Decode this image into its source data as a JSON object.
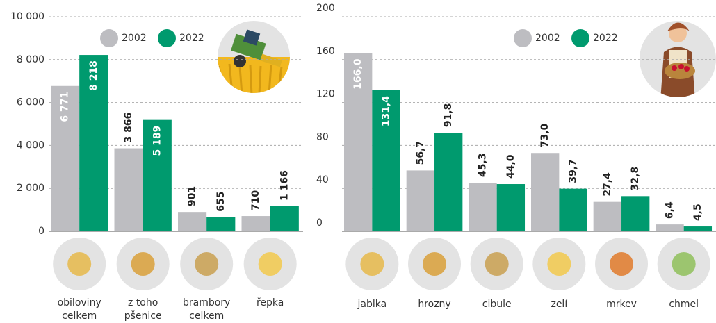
{
  "chart_data": [
    {
      "type": "bar",
      "categories": [
        [
          "obiloviny",
          "celkem"
        ],
        [
          "z toho",
          "pšenice"
        ],
        [
          "brambory",
          "celkem"
        ],
        [
          "řepka"
        ]
      ],
      "series": [
        {
          "name": "2002",
          "color": "#bdbdc1",
          "values": [
            6771,
            3866,
            901,
            710
          ],
          "value_labels": [
            "6 771",
            "3 866",
            "901",
            "710"
          ]
        },
        {
          "name": "2022",
          "color": "#009a6e",
          "values": [
            8218,
            5189,
            655,
            1166
          ],
          "value_labels": [
            "8 218",
            "5 189",
            "655",
            "1 166"
          ]
        }
      ],
      "ylim": [
        0,
        10000
      ],
      "yticks": [
        0,
        {
          "value": 2000,
          "label": "2 000"
        },
        {
          "value": 4000,
          "label": "4 000"
        },
        {
          "value": 6000,
          "label": "6 000"
        },
        {
          "value": 8000,
          "label": "8 000"
        },
        {
          "value": 10000,
          "label": "10 000"
        }
      ],
      "grid": true
    },
    {
      "type": "bar",
      "categories": [
        [
          "jablka"
        ],
        [
          "hrozny"
        ],
        [
          "cibule"
        ],
        [
          "zelí"
        ],
        [
          "mrkev"
        ],
        [
          "chmel"
        ]
      ],
      "series": [
        {
          "name": "2002",
          "color": "#bdbdc1",
          "values": [
            166.0,
            56.7,
            45.3,
            73.0,
            27.4,
            6.4
          ],
          "value_labels": [
            "166,0",
            "56,7",
            "45,3",
            "73,0",
            "27,4",
            "6,4"
          ]
        },
        {
          "name": "2022",
          "color": "#009a6e",
          "values": [
            131.4,
            91.8,
            44.0,
            39.7,
            32.8,
            4.5
          ],
          "value_labels": [
            "131,4",
            "91,8",
            "44,0",
            "39,7",
            "32,8",
            "4,5"
          ]
        }
      ],
      "ylim": [
        0,
        200
      ],
      "yticks": [
        0,
        40,
        80,
        120,
        160,
        200
      ],
      "grid": true
    }
  ]
}
